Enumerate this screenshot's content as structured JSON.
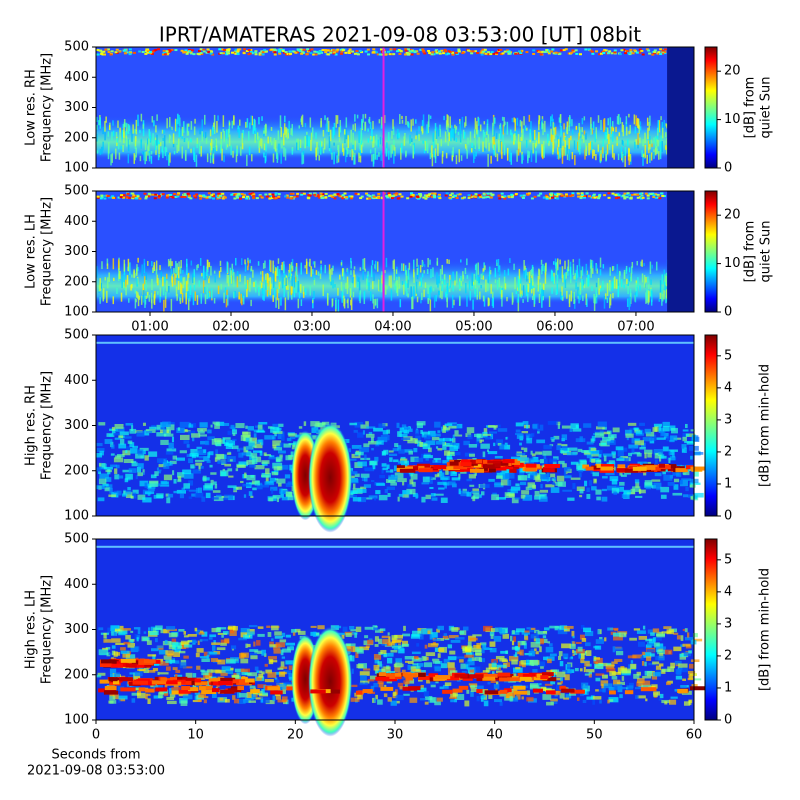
{
  "chart_data": [
    {
      "type": "heatmap",
      "title": "IPRT/AMATERAS 2021-09-08 03:53:00 [UT]   08bit",
      "ylabel": [
        "Low res. RH",
        "Frequency [MHz]"
      ],
      "ylim": [
        100,
        500
      ],
      "yticks": [
        100,
        200,
        300,
        400,
        500
      ],
      "xlim": [
        20,
        463
      ],
      "marker_x": 233,
      "marker_color": "#e020e0",
      "colorbar_label": [
        "[dB] from",
        "quiet Sun"
      ],
      "clim": [
        0,
        25
      ],
      "cticks": [
        0,
        10,
        20
      ]
    },
    {
      "type": "heatmap",
      "ylabel": [
        "Low res. LH",
        "Frequency [MHz]"
      ],
      "ylim": [
        100,
        500
      ],
      "yticks": [
        100,
        200,
        300,
        400,
        500
      ],
      "xlim": [
        20,
        463
      ],
      "marker_x": 233,
      "marker_color": "#e020e0",
      "xticks": [
        {
          "value": 60,
          "label": "01:00"
        },
        {
          "value": 120,
          "label": "02:00"
        },
        {
          "value": 180,
          "label": "03:00"
        },
        {
          "value": 240,
          "label": "04:00"
        },
        {
          "value": 300,
          "label": "05:00"
        },
        {
          "value": 360,
          "label": "06:00"
        },
        {
          "value": 420,
          "label": "07:00"
        }
      ],
      "colorbar_label": [
        "[dB] from",
        "quiet Sun"
      ],
      "clim": [
        0,
        25
      ],
      "cticks": [
        0,
        10,
        20
      ]
    },
    {
      "type": "heatmap",
      "ylabel": [
        "High res. RH",
        "Frequency [MHz]"
      ],
      "ylim": [
        100,
        500
      ],
      "yticks": [
        100,
        200,
        300,
        400,
        500
      ],
      "xlim": [
        0,
        60
      ],
      "colorbar_label": [
        "[dB] from min-hold"
      ],
      "clim": [
        0,
        5.65
      ],
      "cticks": [
        0,
        1,
        2,
        3,
        4,
        5
      ]
    },
    {
      "type": "heatmap",
      "ylabel": [
        "High res. LH",
        "Frequency [MHz]"
      ],
      "ylim": [
        100,
        500
      ],
      "yticks": [
        100,
        200,
        300,
        400,
        500
      ],
      "xlim": [
        0,
        60
      ],
      "xticks": [
        0,
        10,
        20,
        30,
        40,
        50,
        60
      ],
      "xlabel": [
        "Seconds from",
        "2021-09-08 03:53:00"
      ],
      "colorbar_label": [
        "[dB] from min-hold"
      ],
      "clim": [
        0,
        5.65
      ],
      "cticks": [
        0,
        1,
        2,
        3,
        4,
        5
      ]
    }
  ]
}
